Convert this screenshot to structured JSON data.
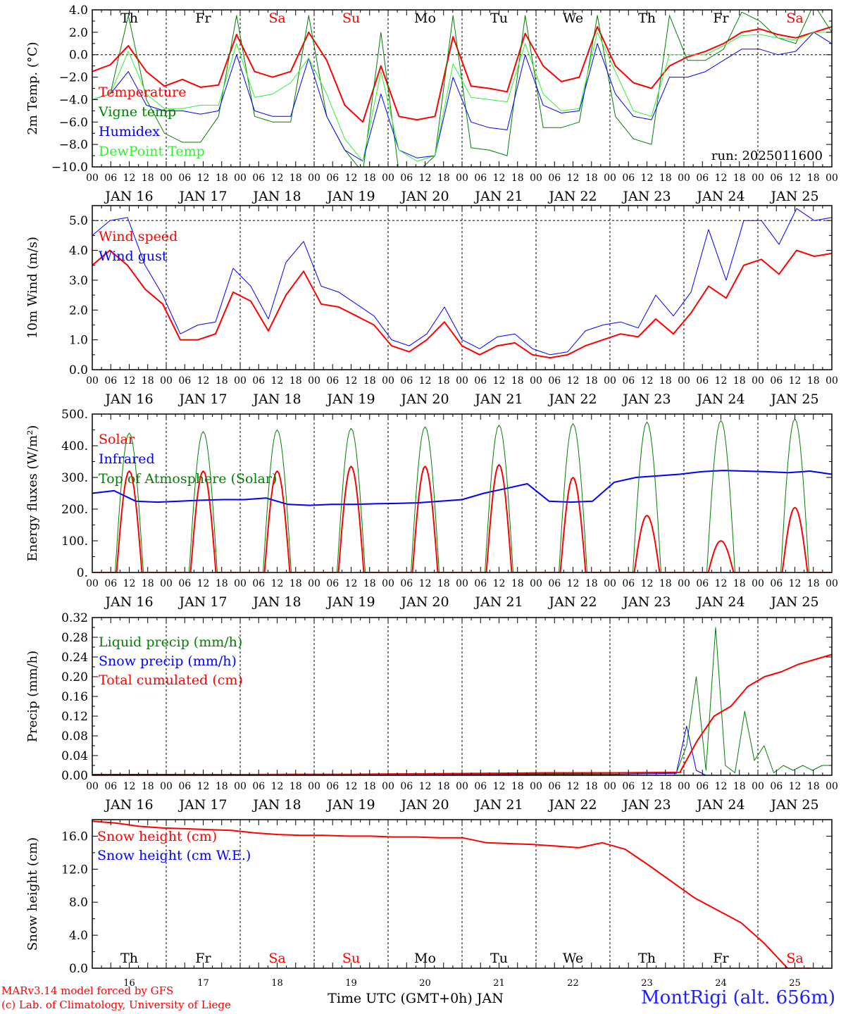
{
  "days": [
    "JAN 16",
    "JAN 17",
    "JAN 18",
    "JAN 19",
    "JAN 20",
    "JAN 21",
    "JAN 22",
    "JAN 23",
    "JAN 24",
    "JAN 25"
  ],
  "hours": [
    "00",
    "06",
    "12",
    "18"
  ],
  "hours_last": "00",
  "weekdays": [
    {
      "label": "Th",
      "weekend": false
    },
    {
      "label": "Fr",
      "weekend": false
    },
    {
      "label": "Sa",
      "weekend": true
    },
    {
      "label": "Su",
      "weekend": true
    },
    {
      "label": "Mo",
      "weekend": false
    },
    {
      "label": "Tu",
      "weekend": false
    },
    {
      "label": "We",
      "weekend": false
    },
    {
      "label": "Th",
      "weekend": false
    },
    {
      "label": "Fr",
      "weekend": false
    },
    {
      "label": "Sa",
      "weekend": true
    }
  ],
  "bottom_day_numbers": [
    "16",
    "17",
    "18",
    "19",
    "20",
    "21",
    "22",
    "23",
    "24",
    "25"
  ],
  "xaxis_title": "Time UTC (GMT+0h) JAN",
  "colors": {
    "red": "#ff0000",
    "green": "#008000",
    "blue": "#0000ff",
    "lightgreen": "#33ee33",
    "weekend": "#ff0000"
  },
  "footer": {
    "credit_line1": "MARv3.14 model forced by GFS",
    "credit_line2": "(c) Lab. of Climatology, University of Liege",
    "station": "MontRigi (alt. 656m)"
  },
  "chart_data": [
    {
      "type": "line",
      "ylabel": "2m Temp. (°C)",
      "ylim": [
        -10,
        4
      ],
      "yticks": [
        "4.0",
        "2.0",
        "0.0",
        "−2.0",
        "−4.0",
        "−6.0",
        "−8.0",
        "−10.0"
      ],
      "ytick_values": [
        4,
        2,
        0,
        -2,
        -4,
        -6,
        -8,
        -10
      ],
      "zero_line": 0,
      "run_label": "run: 2025011600",
      "series": [
        {
          "name": "Temperature",
          "color": "red",
          "width": 2,
          "values": [
            -1.5,
            -0.9,
            0.8,
            -1.5,
            -2.8,
            -2.2,
            -2.9,
            -2.7,
            1.8,
            -1.5,
            -2.0,
            -1.5,
            2.0,
            -0.5,
            -4.5,
            -6.0,
            -1.0,
            -5.5,
            -5.8,
            -5.5,
            1.6,
            -2.8,
            -3.0,
            -3.3,
            1.9,
            -1.0,
            -2.4,
            -2.0,
            2.5,
            -1.0,
            -2.5,
            -3.0,
            -1.0,
            -0.2,
            0.3,
            1.0,
            2.0,
            2.3,
            1.8,
            1.5,
            2.0,
            2.5
          ]
        },
        {
          "name": "Vigne temp",
          "color": "green",
          "width": 1,
          "values": [
            -4.0,
            -3.5,
            3.5,
            -4.0,
            -7.0,
            -7.8,
            -7.8,
            -5.5,
            3.5,
            -5.5,
            -6.0,
            -6.0,
            3.5,
            -5.5,
            -8.5,
            -10.5,
            2.0,
            -10.5,
            -10.5,
            -9.0,
            3.5,
            -8.3,
            -8.5,
            -9.0,
            3.5,
            -6.5,
            -6.5,
            -6.0,
            3.5,
            -5.5,
            -7.5,
            -8.0,
            3.5,
            -0.5,
            -0.5,
            0.5,
            3.8,
            3.0,
            1.5,
            1.0,
            4.5,
            2.0
          ]
        },
        {
          "name": "Humidex",
          "color": "blue",
          "width": 1,
          "values": [
            -4.0,
            -3.5,
            -1.5,
            -4.5,
            -5.0,
            -5.0,
            -5.3,
            -5.0,
            0.0,
            -5.0,
            -5.5,
            -5.5,
            -0.3,
            -5.5,
            -8.5,
            -9.5,
            -3.5,
            -8.5,
            -9.2,
            -9.0,
            -2.0,
            -6.0,
            -6.5,
            -6.7,
            0.0,
            -4.5,
            -5.2,
            -5.0,
            1.0,
            -3.5,
            -5.5,
            -5.8,
            -2.0,
            -2.0,
            -1.5,
            -0.5,
            0.5,
            0.5,
            0.0,
            0.3,
            2.0,
            1.0
          ]
        },
        {
          "name": "DewPoint Temp",
          "color": "lightgreen",
          "width": 1,
          "values": [
            -4.0,
            -3.5,
            0.3,
            -3.5,
            -4.8,
            -4.8,
            -4.5,
            -4.5,
            1.0,
            -3.8,
            -3.5,
            -2.5,
            -0.3,
            -3.5,
            -7.5,
            -9.5,
            -1.5,
            -8.5,
            -9.5,
            -9.0,
            -0.8,
            -3.8,
            -4.0,
            -4.2,
            1.0,
            -3.5,
            -5.0,
            -4.8,
            2.0,
            -1.5,
            -5.0,
            -5.5,
            0.0,
            0.0,
            0.0,
            0.8,
            1.7,
            1.8,
            1.5,
            1.3,
            2.0,
            2.0
          ]
        }
      ]
    },
    {
      "type": "line",
      "ylabel": "10m Wind (m/s)",
      "ylim": [
        0,
        5.5
      ],
      "yticks": [
        "5.0",
        "4.0",
        "3.0",
        "2.0",
        "1.0",
        "0.0"
      ],
      "ytick_values": [
        5,
        4,
        3,
        2,
        1,
        0
      ],
      "dashed_line": 5.0,
      "series": [
        {
          "name": "Wind speed",
          "color": "red",
          "width": 2,
          "values": [
            3.5,
            4.0,
            3.5,
            2.7,
            2.2,
            1.0,
            1.0,
            1.2,
            2.6,
            2.3,
            1.3,
            2.5,
            3.3,
            2.2,
            2.1,
            1.8,
            1.5,
            0.8,
            0.6,
            1.0,
            1.6,
            0.8,
            0.5,
            0.8,
            0.9,
            0.5,
            0.4,
            0.5,
            0.8,
            1.0,
            1.2,
            1.1,
            1.7,
            1.2,
            1.9,
            2.8,
            2.4,
            3.5,
            3.7,
            3.2,
            4.0,
            3.8,
            3.9
          ]
        },
        {
          "name": "Wind gust",
          "color": "blue",
          "width": 1,
          "values": [
            4.5,
            5.0,
            5.1,
            3.5,
            2.5,
            1.2,
            1.5,
            1.6,
            3.4,
            2.8,
            1.7,
            3.6,
            4.3,
            2.8,
            2.6,
            2.2,
            1.8,
            1.0,
            0.8,
            1.2,
            2.1,
            1.0,
            0.7,
            1.1,
            1.2,
            0.7,
            0.5,
            0.6,
            1.3,
            1.5,
            1.6,
            1.4,
            2.5,
            1.8,
            2.6,
            4.7,
            3.0,
            5.0,
            5.0,
            4.2,
            5.4,
            5.0,
            5.1
          ]
        }
      ]
    },
    {
      "type": "line",
      "ylabel": "Energy fluxes (W/m²)",
      "ylim": [
        0,
        500
      ],
      "yticks": [
        "500.",
        "400.",
        "300.",
        "200.",
        "100.",
        "0."
      ],
      "ytick_values": [
        500,
        400,
        300,
        200,
        100,
        0
      ],
      "series": [
        {
          "name": "Solar",
          "color": "red",
          "width": 2,
          "peaks": [
            320,
            320,
            320,
            335,
            335,
            340,
            300,
            180,
            100,
            205
          ]
        },
        {
          "name": "Infrared",
          "color": "blue",
          "width": 2,
          "values": [
            250,
            258,
            225,
            222,
            225,
            228,
            230,
            230,
            235,
            215,
            212,
            215,
            215,
            217,
            218,
            220,
            225,
            230,
            250,
            265,
            280,
            225,
            222,
            225,
            285,
            300,
            305,
            310,
            318,
            322,
            320,
            318,
            315,
            320,
            310
          ]
        },
        {
          "name": "Top of Atmosphere (Solar)",
          "color": "green",
          "width": 1,
          "peaks": [
            440,
            445,
            450,
            455,
            460,
            465,
            470,
            475,
            480,
            485
          ]
        }
      ]
    },
    {
      "type": "line",
      "ylabel": "Precip (mm/h)",
      "ylim": [
        0,
        0.32
      ],
      "yticks": [
        "0.32",
        "0.28",
        "0.24",
        "0.20",
        "0.16",
        "0.12",
        "0.08",
        "0.04",
        "0.00"
      ],
      "ytick_values": [
        0.32,
        0.28,
        0.24,
        0.2,
        0.16,
        0.12,
        0.08,
        0.04,
        0.0
      ],
      "series": [
        {
          "name": "Liquid precip (mm/h)",
          "color": "green",
          "width": 1,
          "values": [
            0.002,
            0.002,
            0.002,
            0.002,
            0.002,
            0.003,
            0.003,
            0.003,
            0.004,
            0.005,
            0.008,
            0.06,
            0.2,
            0.01,
            0.3,
            0.02,
            0.005,
            0.13,
            0.03,
            0.06,
            0.005,
            0.02,
            0.01,
            0.02,
            0.01,
            0.02,
            0.02
          ]
        },
        {
          "name": "Snow precip (mm/h)",
          "color": "blue",
          "width": 1,
          "values": [
            0.002,
            0.002,
            0.002,
            0.002,
            0.002,
            0.002,
            0.002,
            0.002,
            0.002,
            0.004,
            0.01,
            0.1,
            0.01,
            0.0,
            0.0,
            0.0,
            0.0,
            0.0,
            0.0,
            0.0,
            0.0,
            0.0,
            0.0,
            0.0,
            0.0,
            0.0,
            0.0
          ]
        },
        {
          "name": "Total cumulated (cm)",
          "color": "red",
          "width": 2,
          "values": [
            0.0,
            0.0,
            0.001,
            0.002,
            0.002,
            0.003,
            0.004,
            0.005,
            0.005,
            0.006,
            0.008,
            0.07,
            0.12,
            0.14,
            0.18,
            0.2,
            0.21,
            0.225,
            0.235,
            0.245
          ]
        }
      ]
    },
    {
      "type": "line",
      "ylabel": "Snow height (cm)",
      "ylim": [
        0,
        18
      ],
      "yticks": [
        "16.0",
        "12.0",
        "8.0",
        "4.0",
        "0.0"
      ],
      "ytick_values": [
        16,
        12,
        8,
        4,
        0
      ],
      "series": [
        {
          "name": "Snow height (cm)",
          "color": "red",
          "width": 2,
          "values": [
            17.8,
            17.6,
            17.2,
            17.0,
            16.9,
            16.8,
            16.7,
            16.4,
            16.2,
            16.1,
            16.1,
            16.0,
            16.0,
            15.9,
            15.9,
            15.8,
            15.8,
            15.2,
            15.1,
            15.0,
            14.8,
            14.6,
            15.2,
            14.4,
            12.5,
            10.5,
            8.5,
            7.0,
            5.5,
            3.0,
            0.0,
            0.0
          ]
        },
        {
          "name": "Snow height (cm W.E.)",
          "color": "blue",
          "width": 0,
          "values": []
        }
      ]
    }
  ]
}
